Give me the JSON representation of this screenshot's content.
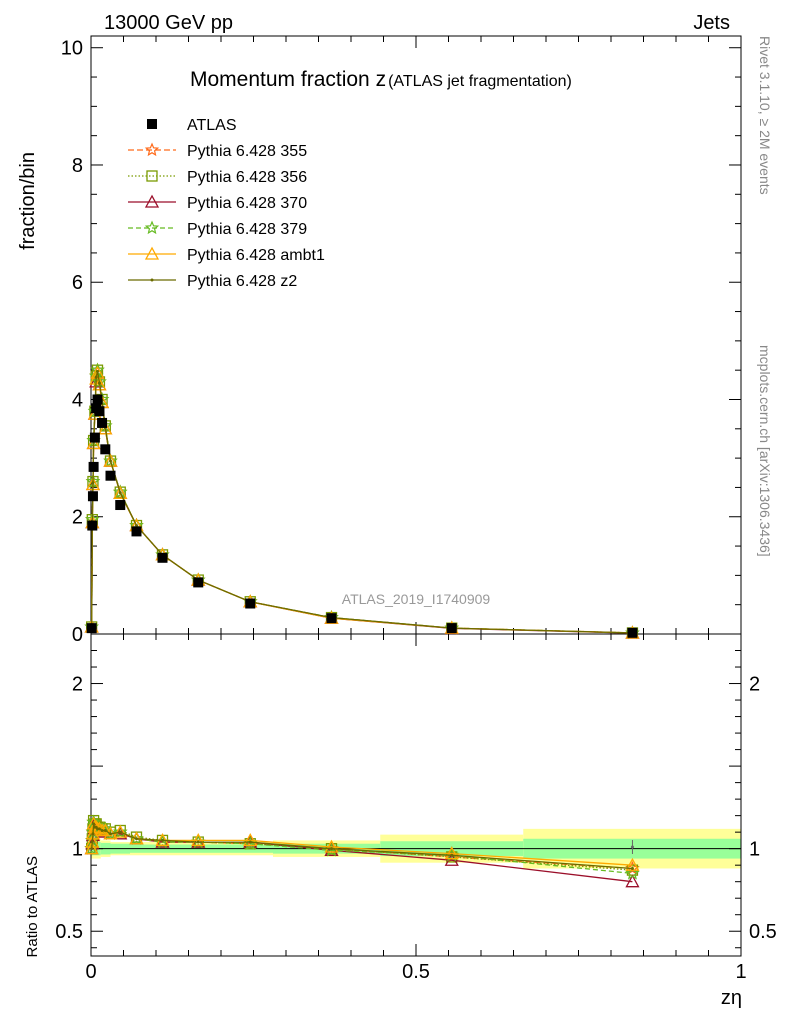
{
  "header": {
    "left": "13000 GeV pp",
    "right": "Jets"
  },
  "side_labels": {
    "rivet": "Rivet 3.1.10, ≥ 2M events",
    "mcplots": "mcplots.cern.ch [arXiv:1306.3436]"
  },
  "watermark": "ATLAS_2019_I1740909",
  "title": {
    "main": "Momentum fraction z",
    "sub": "(ATLAS jet fragmentation)"
  },
  "colors": {
    "data": "#000000",
    "p355": "#ff6a1a",
    "p356": "#7a9a01",
    "p370": "#9b0f2a",
    "p379": "#66bb22",
    "pambt1": "#ffaa00",
    "pz2": "#6b6b00",
    "band_inner": "#99ff99",
    "band_outer": "#ffff99"
  },
  "chart_data": [
    {
      "type": "line",
      "panel": "main",
      "xlabel": "zη",
      "ylabel": "fraction/bin",
      "xlim": [
        0,
        1
      ],
      "ylim": [
        0,
        10.2
      ],
      "yticks": [
        "0",
        "2",
        "4",
        "6",
        "8",
        "10"
      ],
      "legend_position": "top-left",
      "x": [
        0.001,
        0.002,
        0.003,
        0.004,
        0.006,
        0.008,
        0.01,
        0.013,
        0.017,
        0.022,
        0.03,
        0.045,
        0.07,
        0.11,
        0.165,
        0.245,
        0.37,
        0.555,
        0.833
      ],
      "series": [
        {
          "name": "ATLAS",
          "key": "data",
          "marker": "square",
          "values": [
            0.1,
            1.85,
            2.35,
            2.85,
            3.35,
            3.85,
            4.0,
            3.8,
            3.6,
            3.15,
            2.7,
            2.2,
            1.75,
            1.3,
            0.88,
            0.52,
            0.27,
            0.1,
            0.02
          ],
          "errors": [
            0.01,
            0.05,
            0.05,
            0.06,
            0.06,
            0.07,
            0.07,
            0.07,
            0.06,
            0.05,
            0.05,
            0.04,
            0.03,
            0.02,
            0.02,
            0.01,
            0.01,
            0.005,
            0.002
          ]
        },
        {
          "name": "Pythia 6.428 355",
          "key": "p355",
          "marker": "star",
          "dash": "6,3",
          "values": [
            0.12,
            1.95,
            2.6,
            3.3,
            3.8,
            4.4,
            4.5,
            4.3,
            4.0,
            3.55,
            2.95,
            2.42,
            1.85,
            1.35,
            0.92,
            0.55,
            0.28,
            0.1,
            0.018
          ]
        },
        {
          "name": "Pythia 6.428 356",
          "key": "p356",
          "marker": "open-square",
          "dash": "1.5,2",
          "values": [
            0.12,
            1.95,
            2.6,
            3.3,
            3.8,
            4.4,
            4.5,
            4.3,
            4.0,
            3.55,
            2.95,
            2.42,
            1.85,
            1.35,
            0.92,
            0.55,
            0.28,
            0.1,
            0.018
          ]
        },
        {
          "name": "Pythia 6.428 370",
          "key": "p370",
          "marker": "open-triangle",
          "dash": "",
          "values": [
            0.12,
            1.9,
            2.55,
            3.25,
            3.75,
            4.3,
            4.45,
            4.25,
            3.95,
            3.5,
            2.95,
            2.4,
            1.85,
            1.35,
            0.92,
            0.55,
            0.27,
            0.095,
            0.016
          ]
        },
        {
          "name": "Pythia 6.428 379",
          "key": "p379",
          "marker": "star",
          "dash": "5,3",
          "values": [
            0.12,
            1.95,
            2.6,
            3.3,
            3.8,
            4.4,
            4.5,
            4.3,
            4.0,
            3.55,
            2.95,
            2.42,
            1.85,
            1.35,
            0.92,
            0.55,
            0.28,
            0.1,
            0.017
          ]
        },
        {
          "name": "Pythia 6.428 ambt1",
          "key": "pambt1",
          "marker": "open-triangle",
          "dash": "",
          "values": [
            0.12,
            1.9,
            2.55,
            3.25,
            3.75,
            4.35,
            4.45,
            4.25,
            3.95,
            3.5,
            2.95,
            2.4,
            1.85,
            1.35,
            0.92,
            0.55,
            0.27,
            0.1,
            0.018
          ]
        },
        {
          "name": "Pythia 6.428 z2",
          "key": "pz2",
          "marker": "dot",
          "dash": "",
          "values": [
            0.12,
            1.92,
            2.58,
            3.28,
            3.78,
            4.38,
            4.48,
            4.28,
            3.98,
            3.52,
            2.95,
            2.41,
            1.85,
            1.35,
            0.92,
            0.55,
            0.28,
            0.1,
            0.018
          ]
        }
      ]
    },
    {
      "type": "line",
      "panel": "ratio",
      "xlabel": "zη",
      "ylabel": "Ratio to ATLAS",
      "xlim": [
        0,
        1
      ],
      "ylim": [
        0.35,
        2.3
      ],
      "yticks": [
        "0.5",
        "1",
        "2"
      ],
      "xticks": [
        "0",
        "0.5",
        "1"
      ],
      "bands": {
        "edges": [
          0,
          0.015,
          0.03,
          0.06,
          0.14,
          0.28,
          0.445,
          0.665,
          1.0
        ],
        "inner": [
          0.04,
          0.035,
          0.03,
          0.025,
          0.025,
          0.03,
          0.045,
          0.06
        ],
        "outer": [
          0.06,
          0.05,
          0.04,
          0.04,
          0.04,
          0.05,
          0.085,
          0.12
        ]
      },
      "x": [
        0.001,
        0.002,
        0.003,
        0.004,
        0.006,
        0.008,
        0.01,
        0.013,
        0.017,
        0.022,
        0.03,
        0.045,
        0.07,
        0.11,
        0.165,
        0.245,
        0.37,
        0.555,
        0.833
      ],
      "series": [
        {
          "name": "ATLAS",
          "key": "data",
          "values": [
            1,
            1,
            1,
            1,
            1,
            1,
            1,
            1,
            1,
            1,
            1,
            1,
            1,
            1,
            1,
            1,
            1,
            0.97,
            1.01
          ]
        },
        {
          "name": "Pythia 6.428 355",
          "key": "p355",
          "values": [
            1.0,
            1.05,
            1.1,
            1.16,
            1.14,
            1.14,
            1.12,
            1.12,
            1.11,
            1.12,
            1.09,
            1.1,
            1.06,
            1.04,
            1.04,
            1.03,
            1.0,
            0.95,
            0.88
          ]
        },
        {
          "name": "Pythia 6.428 356",
          "key": "p356",
          "values": [
            1.0,
            1.06,
            1.12,
            1.17,
            1.15,
            1.15,
            1.13,
            1.13,
            1.12,
            1.12,
            1.1,
            1.11,
            1.07,
            1.05,
            1.04,
            1.03,
            1.0,
            0.95,
            0.87
          ]
        },
        {
          "name": "Pythia 6.428 370",
          "key": "p370",
          "values": [
            1.0,
            1.03,
            1.08,
            1.14,
            1.12,
            1.12,
            1.11,
            1.11,
            1.1,
            1.11,
            1.09,
            1.09,
            1.06,
            1.04,
            1.04,
            1.04,
            0.99,
            0.93,
            0.8
          ]
        },
        {
          "name": "Pythia 6.428 379",
          "key": "p379",
          "values": [
            1.0,
            1.05,
            1.1,
            1.16,
            1.14,
            1.14,
            1.12,
            1.12,
            1.11,
            1.12,
            1.09,
            1.1,
            1.06,
            1.04,
            1.04,
            1.03,
            0.99,
            0.96,
            0.85
          ]
        },
        {
          "name": "Pythia 6.428 ambt1",
          "key": "pambt1",
          "values": [
            1.0,
            1.04,
            1.09,
            1.15,
            1.13,
            1.13,
            1.12,
            1.12,
            1.11,
            1.11,
            1.09,
            1.1,
            1.06,
            1.05,
            1.05,
            1.05,
            1.01,
            0.97,
            0.9
          ]
        },
        {
          "name": "Pythia 6.428 z2",
          "key": "pz2",
          "values": [
            1.0,
            1.04,
            1.09,
            1.15,
            1.13,
            1.13,
            1.12,
            1.12,
            1.11,
            1.11,
            1.09,
            1.1,
            1.06,
            1.05,
            1.04,
            1.04,
            1.0,
            0.96,
            0.88
          ]
        }
      ]
    }
  ]
}
